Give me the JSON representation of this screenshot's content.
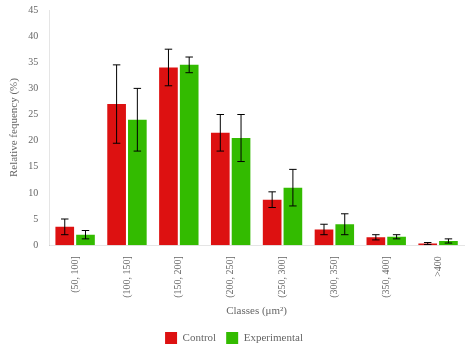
{
  "chart_data": {
    "type": "bar",
    "categories": [
      "(50, 100]",
      "(100, 150]",
      "(150, 200]",
      "(200, 250]",
      "(250, 300]",
      "(300, 350]",
      "(350, 400]",
      ">400"
    ],
    "series": [
      {
        "name": "Control",
        "color": "#DD1111",
        "values": [
          3.5,
          27.0,
          34.0,
          21.5,
          8.7,
          3.0,
          1.5,
          0.3
        ],
        "errors": [
          1.5,
          7.5,
          3.5,
          3.5,
          1.5,
          1.0,
          0.5,
          0.2
        ]
      },
      {
        "name": "Experimental",
        "color": "#33BB00",
        "values": [
          2.0,
          24.0,
          34.5,
          20.5,
          11.0,
          4.0,
          1.6,
          0.8
        ],
        "errors": [
          0.8,
          6.0,
          1.5,
          4.5,
          3.5,
          2.0,
          0.4,
          0.4
        ]
      }
    ],
    "xlabel": "Classes (μm²)",
    "ylabel": "Relative fequency (%)",
    "ylim": [
      0,
      45
    ],
    "yticks": [
      0,
      5,
      10,
      15,
      20,
      25,
      30,
      35,
      40,
      45
    ],
    "grid": false,
    "legend": "bottom"
  }
}
